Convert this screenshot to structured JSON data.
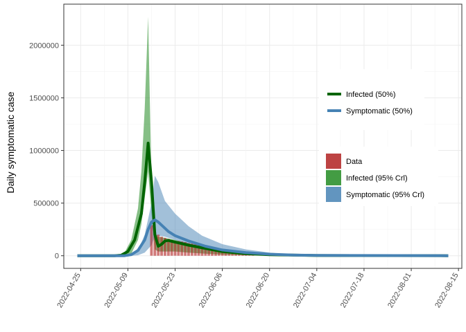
{
  "chart_data": {
    "type": "area",
    "title": "",
    "xlabel": "",
    "ylabel": "Daily symptomatic case",
    "x_axis": {
      "type": "date",
      "range": [
        "2022-04-20",
        "2022-08-16"
      ],
      "ticks": [
        "2022-04-25",
        "2022-05-09",
        "2022-05-23",
        "2022-06-06",
        "2022-06-20",
        "2022-07-04",
        "2022-07-18",
        "2022-08-01",
        "2022-08-15"
      ]
    },
    "y_axis": {
      "range": [
        -120000,
        2390000
      ],
      "ticks": [
        0,
        500000,
        1000000,
        1500000,
        2000000
      ],
      "tick_labels": [
        "0",
        "500000",
        "1000000",
        "1500000",
        "2000000"
      ]
    },
    "grid": true,
    "legend_placement": "right",
    "legend": {
      "lines": [
        {
          "label": "Infected (50%)",
          "color": "#006400"
        },
        {
          "label": "Symptomatic (50%)",
          "color": "#4682b4"
        }
      ],
      "fills": [
        {
          "label": "Data",
          "color": "#b22222"
        },
        {
          "label": "Infected (95% Crl)",
          "color": "#228b22"
        },
        {
          "label": "Symptomatic (95% Crl)",
          "color": "#4682b4"
        }
      ]
    },
    "series": [
      {
        "name": "Infected (95% Crl)",
        "kind": "band",
        "color": "#228b22",
        "opacity": 0.55,
        "x": [
          "2022-05-06",
          "2022-05-08",
          "2022-05-10",
          "2022-05-12",
          "2022-05-13",
          "2022-05-14",
          "2022-05-15",
          "2022-05-16",
          "2022-05-17",
          "2022-05-18",
          "2022-05-20",
          "2022-05-23",
          "2022-05-27",
          "2022-06-01",
          "2022-06-06",
          "2022-06-13",
          "2022-06-20"
        ],
        "lower": [
          0,
          2000,
          20000,
          150000,
          300000,
          550000,
          800000,
          400000,
          60000,
          40000,
          40000,
          40000,
          30000,
          20000,
          10000,
          5000,
          2000
        ],
        "upper": [
          5000,
          30000,
          150000,
          450000,
          800000,
          1400000,
          2270000,
          700000,
          220000,
          180000,
          170000,
          150000,
          120000,
          80000,
          50000,
          25000,
          10000
        ]
      },
      {
        "name": "Symptomatic (95% Crl)",
        "kind": "band",
        "color": "#4682b4",
        "opacity": 0.5,
        "x": [
          "2022-05-10",
          "2022-05-12",
          "2022-05-14",
          "2022-05-16",
          "2022-05-17",
          "2022-05-18",
          "2022-05-20",
          "2022-05-23",
          "2022-05-27",
          "2022-05-31",
          "2022-06-06",
          "2022-06-13",
          "2022-06-20",
          "2022-06-27"
        ],
        "lower": [
          0,
          5000,
          30000,
          100000,
          180000,
          190000,
          180000,
          150000,
          100000,
          60000,
          30000,
          15000,
          5000,
          2000
        ],
        "upper": [
          10000,
          50000,
          200000,
          500000,
          760000,
          700000,
          520000,
          400000,
          280000,
          190000,
          110000,
          60000,
          30000,
          10000
        ]
      },
      {
        "name": "Data",
        "kind": "bars",
        "color": "#b22222",
        "opacity": 0.6,
        "x": [
          "2022-05-16",
          "2022-05-17",
          "2022-05-18",
          "2022-05-19",
          "2022-05-20",
          "2022-05-21",
          "2022-05-22",
          "2022-05-23",
          "2022-05-24",
          "2022-05-25",
          "2022-05-26",
          "2022-05-27",
          "2022-05-28",
          "2022-05-29",
          "2022-05-30",
          "2022-05-31",
          "2022-06-01",
          "2022-06-02",
          "2022-06-03",
          "2022-06-04",
          "2022-06-05",
          "2022-06-06",
          "2022-06-07",
          "2022-06-08",
          "2022-06-09",
          "2022-06-10",
          "2022-06-11",
          "2022-06-12",
          "2022-06-13",
          "2022-06-14",
          "2022-06-15"
        ],
        "values": [
          290000,
          220000,
          200000,
          180000,
          170000,
          160000,
          150000,
          140000,
          140000,
          135000,
          130000,
          120000,
          115000,
          110000,
          100000,
          95000,
          90000,
          85000,
          80000,
          70000,
          65000,
          60000,
          55000,
          50000,
          45000,
          40000,
          35000,
          30000,
          28000,
          25000,
          20000
        ]
      },
      {
        "name": "Infected (50%)",
        "kind": "line",
        "color": "#006400",
        "width": 4,
        "x": [
          "2022-04-24",
          "2022-05-05",
          "2022-05-07",
          "2022-05-09",
          "2022-05-11",
          "2022-05-13",
          "2022-05-14",
          "2022-05-15",
          "2022-05-16",
          "2022-05-17",
          "2022-05-18",
          "2022-05-19",
          "2022-05-20",
          "2022-05-21",
          "2022-05-23",
          "2022-05-27",
          "2022-06-01",
          "2022-06-06",
          "2022-06-13",
          "2022-06-20",
          "2022-07-04",
          "2022-08-12"
        ],
        "y": [
          0,
          0,
          5000,
          40000,
          150000,
          400000,
          700000,
          1070000,
          700000,
          200000,
          90000,
          110000,
          140000,
          145000,
          130000,
          100000,
          70000,
          40000,
          20000,
          10000,
          2000,
          0
        ]
      },
      {
        "name": "Symptomatic (50%)",
        "kind": "line",
        "color": "#4682b4",
        "width": 4,
        "x": [
          "2022-04-24",
          "2022-05-08",
          "2022-05-10",
          "2022-05-12",
          "2022-05-14",
          "2022-05-15",
          "2022-05-16",
          "2022-05-17",
          "2022-05-18",
          "2022-05-19",
          "2022-05-21",
          "2022-05-23",
          "2022-05-27",
          "2022-06-01",
          "2022-06-06",
          "2022-06-13",
          "2022-06-20",
          "2022-06-27",
          "2022-07-04",
          "2022-08-12"
        ],
        "y": [
          0,
          0,
          10000,
          50000,
          150000,
          250000,
          320000,
          340000,
          320000,
          290000,
          230000,
          190000,
          140000,
          90000,
          55000,
          30000,
          15000,
          7000,
          3000,
          0
        ]
      }
    ]
  }
}
